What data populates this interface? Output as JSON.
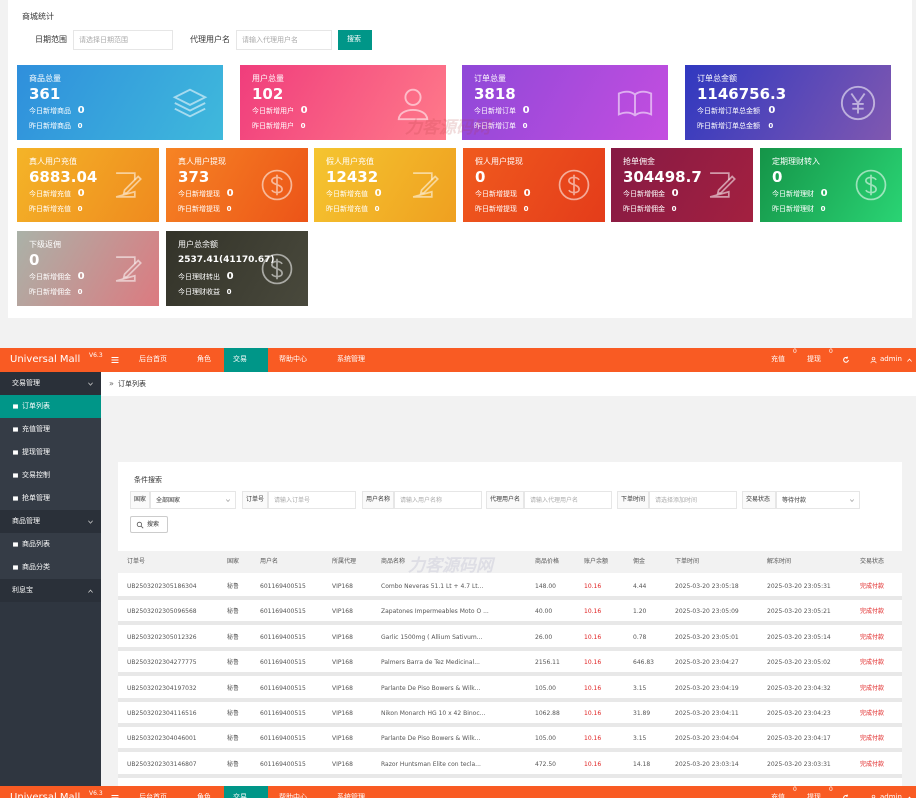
{
  "stats": {
    "title": "商城统计",
    "filters": [
      {
        "label": "日期范围",
        "placeholder": "请选择日期范围"
      },
      {
        "label": "代理用户名",
        "placeholder": "请输入代理用户名"
      }
    ],
    "button": "搜索",
    "cards": [
      {
        "title": "商品总量",
        "value": "361",
        "lines": [
          {
            "label": "今日新增商品",
            "value": "0"
          },
          {
            "label": "昨日新增商品",
            "value": "0"
          }
        ]
      },
      {
        "title": "用户总量",
        "value": "102",
        "lines": [
          {
            "label": "今日新增用户",
            "value": "0"
          },
          {
            "label": "昨日新增用户",
            "value": "0"
          }
        ]
      },
      {
        "title": "订单总量",
        "value": "3818",
        "lines": [
          {
            "label": "今日新增订单",
            "value": "0"
          },
          {
            "label": "昨日新增订单",
            "value": "0"
          }
        ]
      },
      {
        "title": "订单总金额",
        "value": "1146756.3",
        "lines": [
          {
            "label": "今日新增订单总金额",
            "value": "0"
          },
          {
            "label": "昨日新增订单总金额",
            "value": "0"
          }
        ]
      },
      {
        "title": "真人用户充值",
        "value": "6883.04",
        "lines": [
          {
            "label": "今日新增充值",
            "value": "0"
          },
          {
            "label": "昨日新增充值",
            "value": "0"
          }
        ]
      },
      {
        "title": "真人用户提现",
        "value": "373",
        "lines": [
          {
            "label": "今日新增提现",
            "value": "0"
          },
          {
            "label": "昨日新增提现",
            "value": "0"
          }
        ]
      },
      {
        "title": "假人用户充值",
        "value": "12432",
        "lines": [
          {
            "label": "今日新增充值",
            "value": "0"
          },
          {
            "label": "昨日新增充值",
            "value": "0"
          }
        ]
      },
      {
        "title": "假人用户提现",
        "value": "0",
        "lines": [
          {
            "label": "今日新增提现",
            "value": "0"
          },
          {
            "label": "昨日新增提现",
            "value": "0"
          }
        ]
      },
      {
        "title": "抢单佣金",
        "value": "304498.7",
        "lines": [
          {
            "label": "今日新增佣金",
            "value": "0"
          },
          {
            "label": "昨日新增佣金",
            "value": "0"
          }
        ]
      },
      {
        "title": "定期理财转入",
        "value": "0",
        "lines": [
          {
            "label": "今日新增理财",
            "value": "0"
          },
          {
            "label": "昨日新增理财",
            "value": "0"
          }
        ]
      },
      {
        "title": "下级返佣",
        "value": "0",
        "lines": [
          {
            "label": "今日新增佣金",
            "value": "0"
          },
          {
            "label": "昨日新增佣金",
            "value": "0"
          }
        ]
      },
      {
        "title": "用户总余额",
        "value": "2537.41(41170.67)",
        "lines": [
          {
            "label": "今日理财转出",
            "value": "0"
          },
          {
            "label": "今日理财收益",
            "value": "0"
          }
        ]
      }
    ]
  },
  "watermark": "力客源码网",
  "admin": {
    "brand": "Universal Mall",
    "version": "V6.3",
    "nav": [
      {
        "label": "后台首页"
      },
      {
        "label": "角色"
      },
      {
        "label": "交易",
        "active": true
      },
      {
        "label": "帮助中心"
      },
      {
        "label": "系统管理"
      }
    ],
    "actions": [
      {
        "label": "充值",
        "badge": "0"
      },
      {
        "label": "提现",
        "badge": "0"
      }
    ],
    "user": "admin",
    "sidebar": [
      {
        "label": "交易管理",
        "group": true
      },
      {
        "label": "订单列表",
        "active": true
      },
      {
        "label": "充值管理"
      },
      {
        "label": "提现管理"
      },
      {
        "label": "交易控制"
      },
      {
        "label": "抢单管理"
      },
      {
        "label": "商品管理",
        "group": true
      },
      {
        "label": "商品列表"
      },
      {
        "label": "商品分类"
      },
      {
        "label": "利息宝",
        "group": true
      }
    ],
    "breadcrumb": {
      "separator": "»",
      "current": "订单列表"
    },
    "search": {
      "title": "条件搜索",
      "fields": [
        {
          "label": "国家",
          "value": "全部国家"
        },
        {
          "label": "订单号",
          "placeholder": "请输入订单号"
        },
        {
          "label": "用户名称",
          "placeholder": "请输入用户名称"
        },
        {
          "label": "代理用户名",
          "placeholder": "请输入代理用户名"
        },
        {
          "label": "下单时间",
          "placeholder": "请选择添加时间"
        },
        {
          "label": "交易状态",
          "value": "等待付款"
        }
      ],
      "button": "搜索"
    },
    "table": {
      "headers": [
        "订单号",
        "国家",
        "用户名",
        "所属代理",
        "商品名称",
        "商品价格",
        "账户余额",
        "佣金",
        "下单时间",
        "解冻时间",
        "交易状态"
      ],
      "rows": [
        [
          "UB2503202305186304",
          "秘鲁",
          "601169400515",
          "VIP168",
          "Combo Neveras 51.1 Lt + 4.7 Lt...",
          "148.00",
          "10.16",
          "4.44",
          "2025-03-20 23:05:18",
          "2025-03-20 23:05:31",
          "完成付款"
        ],
        [
          "UB2503202305096568",
          "秘鲁",
          "601169400515",
          "VIP168",
          "Zapatones Impermeables Moto O ...",
          "40.00",
          "10.16",
          "1.20",
          "2025-03-20 23:05:09",
          "2025-03-20 23:05:21",
          "完成付款"
        ],
        [
          "UB2503202305012326",
          "秘鲁",
          "601169400515",
          "VIP168",
          "Garlic 1500mg ( Allium Sativum...",
          "26.00",
          "10.16",
          "0.78",
          "2025-03-20 23:05:01",
          "2025-03-20 23:05:14",
          "完成付款"
        ],
        [
          "UB2503202304277775",
          "秘鲁",
          "601169400515",
          "VIP168",
          "Palmers Barra de Tez Medicinal...",
          "2156.11",
          "10.16",
          "646.83",
          "2025-03-20 23:04:27",
          "2025-03-20 23:05:02",
          "完成付款"
        ],
        [
          "UB2503202304197032",
          "秘鲁",
          "601169400515",
          "VIP168",
          "Parlante De Piso Bowers & Wilk...",
          "105.00",
          "10.16",
          "3.15",
          "2025-03-20 23:04:19",
          "2025-03-20 23:04:32",
          "完成付款"
        ],
        [
          "UB2503202304116516",
          "秘鲁",
          "601169400515",
          "VIP168",
          "Nikon Monarch HG 10 x 42 Binoc...",
          "1062.88",
          "10.16",
          "31.89",
          "2025-03-20 23:04:11",
          "2025-03-20 23:04:23",
          "完成付款"
        ],
        [
          "UB2503202304046001",
          "秘鲁",
          "601169400515",
          "VIP168",
          "Parlante De Piso Bowers & Wilk...",
          "105.00",
          "10.16",
          "3.15",
          "2025-03-20 23:04:04",
          "2025-03-20 23:04:17",
          "完成付款"
        ],
        [
          "UB2503202303146807",
          "秘鲁",
          "601169400515",
          "VIP168",
          "Razor Huntsman Elite con tecla...",
          "472.50",
          "10.16",
          "14.18",
          "2025-03-20 23:03:14",
          "2025-03-20 23:03:31",
          "完成付款"
        ]
      ]
    }
  }
}
